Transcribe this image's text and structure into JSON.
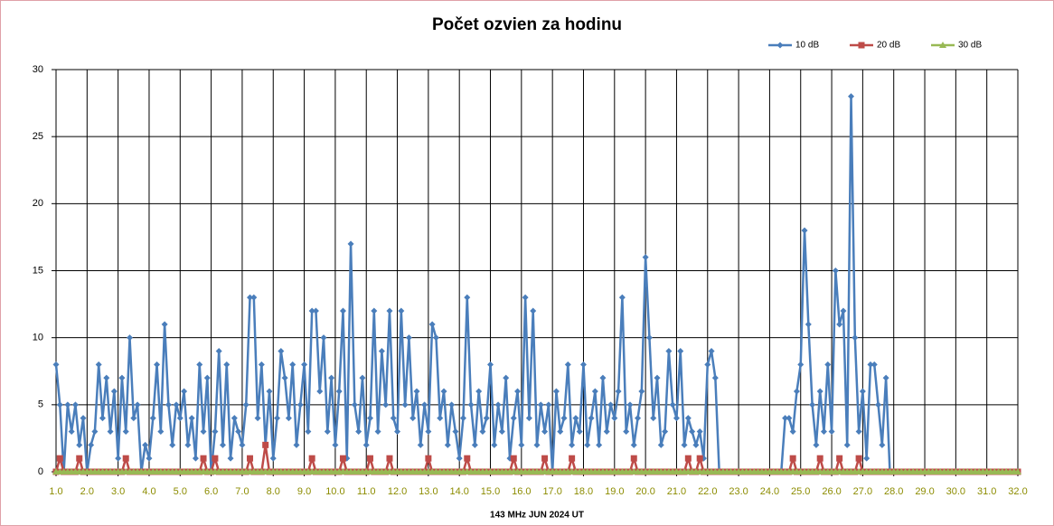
{
  "chart_data": {
    "type": "line",
    "title": "Počet ozvien za hodinu",
    "x_label": "143 MHz JUN  2024  UT",
    "x": [
      1,
      1.125,
      1.25,
      1.375,
      1.5,
      1.625,
      1.75,
      1.875,
      2,
      2.125,
      2.25,
      2.375,
      2.5,
      2.625,
      2.75,
      2.875,
      3,
      3.125,
      3.25,
      3.375,
      3.5,
      3.625,
      3.75,
      3.875,
      4,
      4.125,
      4.25,
      4.375,
      4.5,
      4.625,
      4.75,
      4.875,
      5,
      5.125,
      5.25,
      5.375,
      5.5,
      5.625,
      5.75,
      5.875,
      6,
      6.125,
      6.25,
      6.375,
      6.5,
      6.625,
      6.75,
      6.875,
      7,
      7.125,
      7.25,
      7.375,
      7.5,
      7.625,
      7.75,
      7.875,
      8,
      8.125,
      8.25,
      8.375,
      8.5,
      8.625,
      8.75,
      8.875,
      9,
      9.125,
      9.25,
      9.375,
      9.5,
      9.625,
      9.75,
      9.875,
      10,
      10.125,
      10.25,
      10.375,
      10.5,
      10.625,
      10.75,
      10.875,
      11,
      11.125,
      11.25,
      11.375,
      11.5,
      11.625,
      11.75,
      11.875,
      12,
      12.125,
      12.25,
      12.375,
      12.5,
      12.625,
      12.75,
      12.875,
      13,
      13.125,
      13.25,
      13.375,
      13.5,
      13.625,
      13.75,
      13.875,
      14,
      14.125,
      14.25,
      14.375,
      14.5,
      14.625,
      14.75,
      14.875,
      15,
      15.125,
      15.25,
      15.375,
      15.5,
      15.625,
      15.75,
      15.875,
      16,
      16.125,
      16.25,
      16.375,
      16.5,
      16.625,
      16.75,
      16.875,
      17,
      17.125,
      17.25,
      17.375,
      17.5,
      17.625,
      17.75,
      17.875,
      18,
      18.125,
      18.25,
      18.375,
      18.5,
      18.625,
      18.75,
      18.875,
      19,
      19.125,
      19.25,
      19.375,
      19.5,
      19.625,
      19.75,
      19.875,
      20,
      20.125,
      20.25,
      20.375,
      20.5,
      20.625,
      20.75,
      20.875,
      21,
      21.125,
      21.25,
      21.375,
      21.5,
      21.625,
      21.75,
      21.875,
      22,
      22.125,
      22.25,
      22.375,
      22.5,
      22.625,
      22.75,
      22.875,
      23,
      23.125,
      23.25,
      23.375,
      23.5,
      23.625,
      23.75,
      23.875,
      24,
      24.125,
      24.25,
      24.375,
      24.5,
      24.625,
      24.75,
      24.875,
      25,
      25.125,
      25.25,
      25.375,
      25.5,
      25.625,
      25.75,
      25.875,
      26,
      26.125,
      26.25,
      26.375,
      26.5,
      26.625,
      26.75,
      26.875,
      27,
      27.125,
      27.25,
      27.375,
      27.5,
      27.625,
      27.75,
      27.875,
      28,
      28.125,
      28.25,
      28.375,
      28.5,
      28.625,
      28.75,
      28.875,
      29,
      29.125,
      29.25,
      29.375,
      29.5,
      29.625,
      29.75,
      29.875,
      30,
      30.125,
      30.25,
      30.375,
      30.5,
      30.625,
      30.75,
      30.875,
      31,
      31.125,
      31.25,
      31.375,
      31.5,
      31.625,
      31.75,
      31.875,
      32
    ],
    "series": [
      {
        "name": "10 dB",
        "color": "#4a7ebb",
        "marker": "diamond",
        "values": [
          8,
          5,
          0,
          5,
          3,
          5,
          2,
          4,
          0,
          2,
          3,
          8,
          4,
          7,
          3,
          6,
          1,
          7,
          3,
          10,
          4,
          5,
          0,
          2,
          1,
          4,
          8,
          3,
          11,
          5,
          2,
          5,
          4,
          6,
          2,
          4,
          1,
          8,
          3,
          7,
          0,
          3,
          9,
          2,
          8,
          1,
          4,
          3,
          2,
          5,
          13,
          13,
          4,
          8,
          2,
          6,
          1,
          4,
          9,
          7,
          4,
          8,
          2,
          5,
          8,
          3,
          12,
          12,
          6,
          10,
          3,
          7,
          2,
          6,
          12,
          1,
          17,
          5,
          3,
          7,
          2,
          4,
          12,
          3,
          9,
          5,
          12,
          4,
          3,
          12,
          5,
          10,
          4,
          6,
          2,
          5,
          3,
          11,
          10,
          4,
          6,
          2,
          5,
          3,
          1,
          4,
          13,
          5,
          2,
          6,
          3,
          4,
          8,
          2,
          5,
          3,
          7,
          1,
          4,
          6,
          2,
          13,
          4,
          12,
          2,
          5,
          3,
          5,
          0,
          6,
          3,
          4,
          8,
          2,
          4,
          3,
          8,
          2,
          4,
          6,
          2,
          7,
          3,
          5,
          4,
          6,
          13,
          3,
          5,
          2,
          4,
          6,
          16,
          10,
          4,
          7,
          2,
          3,
          9,
          5,
          4,
          9,
          2,
          4,
          3,
          2,
          3,
          1,
          8,
          9,
          7,
          0,
          0,
          0,
          0,
          0,
          0,
          0,
          0,
          0,
          0,
          0,
          0,
          0,
          0,
          0,
          0,
          0,
          4,
          4,
          3,
          6,
          8,
          18,
          11,
          5,
          2,
          6,
          3,
          8,
          3,
          15,
          11,
          12,
          2,
          28,
          10,
          3,
          6,
          1,
          8,
          8,
          5,
          2,
          7,
          0,
          0,
          0,
          0,
          0,
          0,
          0,
          0,
          0,
          0,
          0,
          0,
          0,
          0,
          0,
          0,
          0,
          0,
          0,
          0,
          0,
          0,
          0,
          0,
          0,
          0,
          0,
          0,
          0,
          0,
          0,
          0,
          0,
          0
        ]
      },
      {
        "name": "20 dB",
        "color": "#be4b48",
        "marker": "square",
        "values": [
          0,
          1,
          0,
          0,
          0,
          0,
          1,
          0,
          0,
          0,
          0,
          0,
          0,
          0,
          0,
          0,
          0,
          0,
          1,
          0,
          0,
          0,
          0,
          0,
          0,
          0,
          0,
          0,
          0,
          0,
          0,
          0,
          0,
          0,
          0,
          0,
          0,
          0,
          1,
          0,
          0,
          1,
          0,
          0,
          0,
          0,
          0,
          0,
          0,
          0,
          1,
          0,
          0,
          0,
          2,
          0,
          0,
          0,
          0,
          0,
          0,
          0,
          0,
          0,
          0,
          0,
          1,
          0,
          0,
          0,
          0,
          0,
          0,
          0,
          1,
          0,
          0,
          0,
          0,
          0,
          0,
          1,
          0,
          0,
          0,
          0,
          1,
          0,
          0,
          0,
          0,
          0,
          0,
          0,
          0,
          0,
          1,
          0,
          0,
          0,
          0,
          0,
          0,
          0,
          0,
          0,
          1,
          0,
          0,
          0,
          0,
          0,
          0,
          0,
          0,
          0,
          0,
          0,
          1,
          0,
          0,
          0,
          0,
          0,
          0,
          0,
          1,
          0,
          0,
          0,
          0,
          0,
          0,
          1,
          0,
          0,
          0,
          0,
          0,
          0,
          0,
          0,
          0,
          0,
          0,
          0,
          0,
          0,
          0,
          1,
          0,
          0,
          0,
          0,
          0,
          0,
          0,
          0,
          0,
          0,
          0,
          0,
          0,
          1,
          0,
          0,
          1,
          0,
          0,
          0,
          0,
          0,
          0,
          0,
          0,
          0,
          0,
          0,
          0,
          0,
          0,
          0,
          0,
          0,
          0,
          0,
          0,
          0,
          0,
          0,
          1,
          0,
          0,
          0,
          0,
          0,
          0,
          1,
          0,
          0,
          0,
          0,
          1,
          0,
          0,
          0,
          0,
          1,
          0,
          0,
          0,
          0,
          0,
          0,
          0,
          0,
          0,
          0,
          0,
          0,
          0,
          0,
          0,
          0,
          0,
          0,
          0,
          0,
          0,
          0,
          0,
          0,
          0,
          0,
          0,
          0,
          0,
          0,
          0,
          0,
          0,
          0,
          0,
          0,
          0,
          0,
          0,
          0,
          0
        ]
      },
      {
        "name": "30 dB",
        "color": "#98b954",
        "marker": "triangle",
        "values": [
          0,
          0,
          0,
          0,
          0,
          0,
          0,
          0,
          0,
          0,
          0,
          0,
          0,
          0,
          0,
          0,
          0,
          0,
          0,
          0,
          0,
          0,
          0,
          0,
          0,
          0,
          0,
          0,
          0,
          0,
          0,
          0,
          0,
          0,
          0,
          0,
          0,
          0,
          0,
          0,
          0,
          0,
          0,
          0,
          0,
          0,
          0,
          0,
          0,
          0,
          0,
          0,
          0,
          0,
          0,
          0,
          0,
          0,
          0,
          0,
          0,
          0,
          0,
          0,
          0,
          0,
          0,
          0,
          0,
          0,
          0,
          0,
          0,
          0,
          0,
          0,
          0,
          0,
          0,
          0,
          0,
          0,
          0,
          0,
          0,
          0,
          0,
          0,
          0,
          0,
          0,
          0,
          0,
          0,
          0,
          0,
          0,
          0,
          0,
          0,
          0,
          0,
          0,
          0,
          0,
          0,
          0,
          0,
          0,
          0,
          0,
          0,
          0,
          0,
          0,
          0,
          0,
          0,
          0,
          0,
          0,
          0,
          0,
          0,
          0,
          0,
          0,
          0,
          0,
          0,
          0,
          0,
          0,
          0,
          0,
          0,
          0,
          0,
          0,
          0,
          0,
          0,
          0,
          0,
          0,
          0,
          0,
          0,
          0,
          0,
          0,
          0,
          0,
          0,
          0,
          0,
          0,
          0,
          0,
          0,
          0,
          0,
          0,
          0,
          0,
          0,
          0,
          0,
          0,
          0,
          0,
          0,
          0,
          0,
          0,
          0,
          0,
          0,
          0,
          0,
          0,
          0,
          0,
          0,
          0,
          0,
          0,
          0,
          0,
          0,
          0,
          0,
          0,
          0,
          0,
          0,
          0,
          0,
          0,
          0,
          0,
          0,
          0,
          0,
          0,
          0,
          0,
          0,
          0,
          0,
          0,
          0,
          0,
          0,
          0,
          0,
          0,
          0,
          0,
          0,
          0,
          0,
          0,
          0,
          0,
          0,
          0,
          0,
          0,
          0,
          0,
          0,
          0,
          0,
          0,
          0,
          0,
          0,
          0,
          0,
          0,
          0,
          0,
          0,
          0,
          0,
          0,
          0,
          0
        ]
      }
    ],
    "xlim": [
      1,
      32
    ],
    "xticks": [
      {
        "value": 1,
        "label": "1.0"
      },
      {
        "value": 2,
        "label": "2.0"
      },
      {
        "value": 3,
        "label": "3.0"
      },
      {
        "value": 4,
        "label": "4.0"
      },
      {
        "value": 5,
        "label": "5.0"
      },
      {
        "value": 6,
        "label": "6.0"
      },
      {
        "value": 7,
        "label": "7.0"
      },
      {
        "value": 8,
        "label": "8.0"
      },
      {
        "value": 9,
        "label": "9.0"
      },
      {
        "value": 10,
        "label": "10.0"
      },
      {
        "value": 11,
        "label": "11.0"
      },
      {
        "value": 12,
        "label": "12.0"
      },
      {
        "value": 13,
        "label": "13.0"
      },
      {
        "value": 14,
        "label": "14.0"
      },
      {
        "value": 15,
        "label": "15.0"
      },
      {
        "value": 16,
        "label": "16.0"
      },
      {
        "value": 17,
        "label": "17.0"
      },
      {
        "value": 18,
        "label": "18.0"
      },
      {
        "value": 19,
        "label": "19.0"
      },
      {
        "value": 20,
        "label": "20.0"
      },
      {
        "value": 21,
        "label": "21.0"
      },
      {
        "value": 22,
        "label": "22.0"
      },
      {
        "value": 23,
        "label": "23.0"
      },
      {
        "value": 24,
        "label": "24.0"
      },
      {
        "value": 25,
        "label": "25.0"
      },
      {
        "value": 26,
        "label": "26.0"
      },
      {
        "value": 27,
        "label": "27.0"
      },
      {
        "value": 28,
        "label": "28.0"
      },
      {
        "value": 29,
        "label": "29.0"
      },
      {
        "value": 30,
        "label": "30.0"
      },
      {
        "value": 31,
        "label": "31.0"
      },
      {
        "value": 32,
        "label": "32.0"
      }
    ],
    "ylim": [
      0,
      30
    ],
    "yticks": [
      0,
      5,
      10,
      15,
      20,
      25,
      30
    ],
    "grid": true,
    "legend": "top-right",
    "xtick_color": "#8c8c00"
  }
}
